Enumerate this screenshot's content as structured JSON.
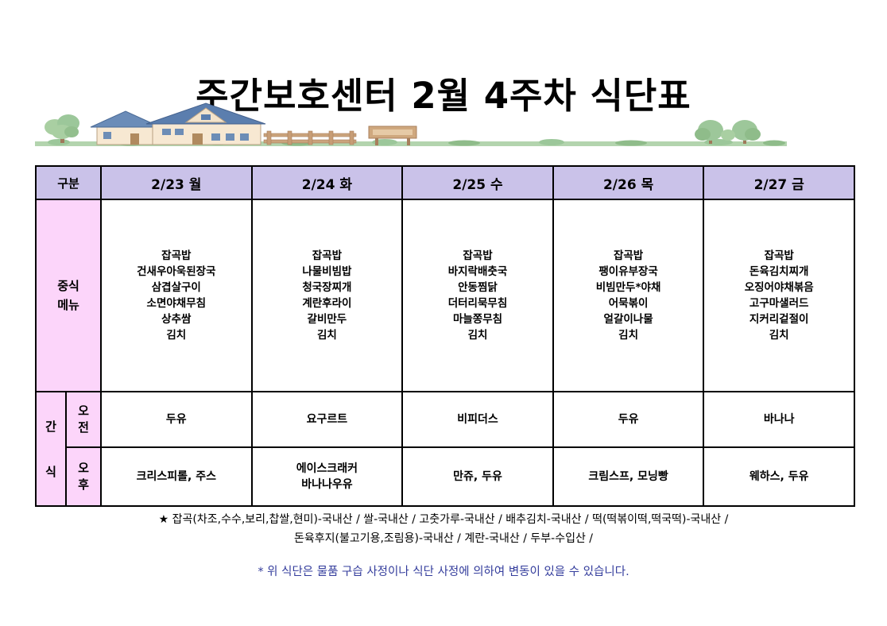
{
  "page": {
    "title": "주간보호센터 2월 4주차 식단표"
  },
  "table": {
    "corner": "구분",
    "days": [
      "2/23 월",
      "2/24 화",
      "2/25 수",
      "2/26 목",
      "2/27 금"
    ],
    "lunch_label": [
      "중식",
      "메뉴"
    ],
    "lunch_menus": [
      [
        "잡곡밥",
        "건새우아욱된장국",
        "삼겹살구이",
        "소면야채무침",
        "상추쌈",
        "김치"
      ],
      [
        "잡곡밥",
        "나물비빔밥",
        "청국장찌개",
        "계란후라이",
        "갈비만두",
        "김치"
      ],
      [
        "잡곡밥",
        "바지락배춧국",
        "안동찜닭",
        "더터리묵무침",
        "마늘쫑무침",
        "김치"
      ],
      [
        "잡곡밥",
        "팽이유부장국",
        "비빔만두*야채",
        "어묵볶이",
        "얼갈이나물",
        "김치"
      ],
      [
        "잡곡밥",
        "돈육김치찌개",
        "오징어야채볶음",
        "고구마샐러드",
        "지커리겉절이",
        "김치"
      ]
    ],
    "snack_label": [
      "간",
      "식"
    ],
    "am_label": [
      "오",
      "전"
    ],
    "pm_label": [
      "오",
      "후"
    ],
    "am_snacks": [
      [
        "두유"
      ],
      [
        "요구르트"
      ],
      [
        "비피더스"
      ],
      [
        "두유"
      ],
      [
        "바나나"
      ]
    ],
    "pm_snacks": [
      [
        "크리스피롤, 주스"
      ],
      [
        "에이스크래커",
        "바나나우유"
      ],
      [
        "만쥬, 두유"
      ],
      [
        "크림스프, 모닝빵"
      ],
      [
        "웨하스, 두유"
      ]
    ]
  },
  "footnotes": {
    "origin_line1": "★ 잡곡(차조,수수,보리,찹쌀,현미)-국내산 / 쌀-국내산 / 고춧가루-국내산 / 배추김치-국내산 / 떡(떡볶이떡,떡국떡)-국내산 /",
    "origin_line2": "돈육후지(불고기용,조림용)-국내산 / 계란-국내산 / 두부-수입산 /",
    "change_notice": "* 위 식단은 물품 구습 사정이나 식단 사정에 의하여 변동이 있을 수 있습니다."
  },
  "colors": {
    "header_bg": "#cac2e9",
    "row_label_bg": "#fcd5fa",
    "notice_text": "#333c9c",
    "table_border": "#000000"
  }
}
